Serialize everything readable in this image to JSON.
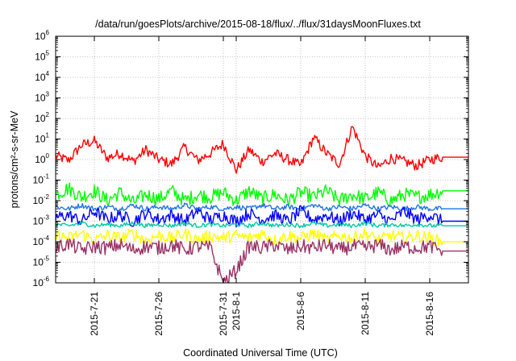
{
  "chart_data": {
    "type": "line",
    "title": "/data/run/goesPlots/archive/2015-08-18/flux/../flux/31daysMoonFluxes.txt",
    "xlabel": "Coordinated Universal Time (UTC)",
    "ylabel": "protons/cm²-s-sr-MeV",
    "yscale": "log",
    "grid": true,
    "ylim": [
      1e-06,
      1000000
    ],
    "xlim": [
      "2015-07-18",
      "2015-08-19"
    ],
    "y_ticks": [
      {
        "base": "10",
        "exp": "-6",
        "value": 1e-06
      },
      {
        "base": "10",
        "exp": "-5",
        "value": 1e-05
      },
      {
        "base": "10",
        "exp": "-4",
        "value": 0.0001
      },
      {
        "base": "10",
        "exp": "-3",
        "value": 0.001
      },
      {
        "base": "10",
        "exp": "-2",
        "value": 0.01
      },
      {
        "base": "10",
        "exp": "-1",
        "value": 0.1
      },
      {
        "base": "10",
        "exp": "0",
        "value": 1
      },
      {
        "base": "10",
        "exp": "1",
        "value": 10
      },
      {
        "base": "10",
        "exp": "2",
        "value": 100
      },
      {
        "base": "10",
        "exp": "3",
        "value": 1000
      },
      {
        "base": "10",
        "exp": "4",
        "value": 10000
      },
      {
        "base": "10",
        "exp": "5",
        "value": 100000
      },
      {
        "base": "10",
        "exp": "6",
        "value": 1000000
      }
    ],
    "x_ticks": [
      "2015-7-21",
      "2015-7-26",
      "2015-7-31",
      "2015-8-1",
      "2015-8-6",
      "2015-8-11",
      "2015-8-16"
    ],
    "x_tick_dates": [
      "2015-07-21",
      "2015-07-26",
      "2015-07-31",
      "2015-08-01",
      "2015-08-06",
      "2015-08-11",
      "2015-08-16"
    ],
    "x_start": "2015-07-18",
    "x_end": "2015-08-19",
    "data_end": "2015-08-17",
    "series": [
      {
        "color": "#ff0000",
        "x": [
          "2015-07-18",
          "2015-07-19",
          "2015-07-20",
          "2015-07-21",
          "2015-07-22",
          "2015-07-23",
          "2015-07-24",
          "2015-07-25",
          "2015-07-26",
          "2015-07-27",
          "2015-07-28",
          "2015-07-29",
          "2015-07-30",
          "2015-07-31",
          "2015-08-01",
          "2015-08-02",
          "2015-08-03",
          "2015-08-04",
          "2015-08-05",
          "2015-08-06",
          "2015-08-07",
          "2015-08-08",
          "2015-08-09",
          "2015-08-10",
          "2015-08-11",
          "2015-08-12",
          "2015-08-13",
          "2015-08-14",
          "2015-08-15",
          "2015-08-16",
          "2015-08-17"
        ],
        "values": [
          1.5,
          0.9,
          5,
          8,
          1.2,
          2,
          0.8,
          3,
          1,
          0.6,
          4,
          0.9,
          2,
          6,
          0.3,
          3,
          0.8,
          2,
          1,
          0.5,
          12,
          2,
          0.6,
          40,
          1.5,
          0.4,
          1.2,
          0.8,
          0.5,
          1,
          1.3
        ],
        "final": 1.3
      },
      {
        "color": "#00ff00",
        "x": [
          "2015-07-18",
          "2015-07-19",
          "2015-07-20",
          "2015-07-21",
          "2015-07-22",
          "2015-07-23",
          "2015-07-24",
          "2015-07-25",
          "2015-07-26",
          "2015-07-27",
          "2015-07-28",
          "2015-07-29",
          "2015-07-30",
          "2015-07-31",
          "2015-08-01",
          "2015-08-02",
          "2015-08-03",
          "2015-08-04",
          "2015-08-05",
          "2015-08-06",
          "2015-08-07",
          "2015-08-08",
          "2015-08-09",
          "2015-08-10",
          "2015-08-11",
          "2015-08-12",
          "2015-08-13",
          "2015-08-14",
          "2015-08-15",
          "2015-08-16",
          "2015-08-17"
        ],
        "values": [
          0.02,
          0.04,
          0.015,
          0.03,
          0.01,
          0.025,
          0.008,
          0.02,
          0.012,
          0.03,
          0.01,
          0.02,
          0.015,
          0.025,
          0.01,
          0.03,
          0.012,
          0.02,
          0.01,
          0.025,
          0.015,
          0.03,
          0.01,
          0.02,
          0.012,
          0.025,
          0.01,
          0.02,
          0.015,
          0.02,
          0.03
        ],
        "final": 0.03
      },
      {
        "color": "#1e73e6",
        "x": [
          "2015-07-18",
          "2015-07-19",
          "2015-07-20",
          "2015-07-21",
          "2015-07-22",
          "2015-07-23",
          "2015-07-24",
          "2015-07-25",
          "2015-07-26",
          "2015-07-27",
          "2015-07-28",
          "2015-07-29",
          "2015-07-30",
          "2015-07-31",
          "2015-08-01",
          "2015-08-02",
          "2015-08-03",
          "2015-08-04",
          "2015-08-05",
          "2015-08-06",
          "2015-08-07",
          "2015-08-08",
          "2015-08-09",
          "2015-08-10",
          "2015-08-11",
          "2015-08-12",
          "2015-08-13",
          "2015-08-14",
          "2015-08-15",
          "2015-08-16",
          "2015-08-17"
        ],
        "values": [
          0.005,
          0.004,
          0.006,
          0.004,
          0.005,
          0.004,
          0.006,
          0.004,
          0.005,
          0.004,
          0.006,
          0.004,
          0.005,
          0.004,
          0.005,
          0.004,
          0.006,
          0.004,
          0.005,
          0.004,
          0.006,
          0.004,
          0.005,
          0.004,
          0.006,
          0.004,
          0.005,
          0.004,
          0.005,
          0.004,
          0.004
        ],
        "final": 0.004
      },
      {
        "color": "#0000ff",
        "x": [
          "2015-07-18",
          "2015-07-19",
          "2015-07-20",
          "2015-07-21",
          "2015-07-22",
          "2015-07-23",
          "2015-07-24",
          "2015-07-25",
          "2015-07-26",
          "2015-07-27",
          "2015-07-28",
          "2015-07-29",
          "2015-07-30",
          "2015-07-31",
          "2015-08-01",
          "2015-08-02",
          "2015-08-03",
          "2015-08-04",
          "2015-08-05",
          "2015-08-06",
          "2015-08-07",
          "2015-08-08",
          "2015-08-09",
          "2015-08-10",
          "2015-08-11",
          "2015-08-12",
          "2015-08-13",
          "2015-08-14",
          "2015-08-15",
          "2015-08-16",
          "2015-08-17"
        ],
        "values": [
          0.0015,
          0.002,
          0.001,
          0.003,
          0.0012,
          0.002,
          0.001,
          0.0025,
          0.0012,
          0.002,
          0.001,
          0.003,
          0.0012,
          0.002,
          0.001,
          0.0025,
          0.0012,
          0.002,
          0.001,
          0.003,
          0.0012,
          0.002,
          0.001,
          0.0025,
          0.0012,
          0.002,
          0.001,
          0.003,
          0.0012,
          0.002,
          0.001
        ],
        "final": 0.001
      },
      {
        "color": "#00c8a0",
        "x": [
          "2015-07-18",
          "2015-07-19",
          "2015-07-20",
          "2015-07-21",
          "2015-07-22",
          "2015-07-23",
          "2015-07-24",
          "2015-07-25",
          "2015-07-26",
          "2015-07-27",
          "2015-07-28",
          "2015-07-29",
          "2015-07-30",
          "2015-07-31",
          "2015-08-01",
          "2015-08-02",
          "2015-08-03",
          "2015-08-04",
          "2015-08-05",
          "2015-08-06",
          "2015-08-07",
          "2015-08-08",
          "2015-08-09",
          "2015-08-10",
          "2015-08-11",
          "2015-08-12",
          "2015-08-13",
          "2015-08-14",
          "2015-08-15",
          "2015-08-16",
          "2015-08-17"
        ],
        "values": [
          0.0007,
          0.0006,
          0.0008,
          0.0006,
          0.0007,
          0.0006,
          0.0008,
          0.0006,
          0.0007,
          0.0006,
          0.0008,
          0.0006,
          0.0007,
          0.0006,
          0.0007,
          0.0006,
          0.0008,
          0.0006,
          0.0007,
          0.0006,
          0.0008,
          0.0006,
          0.0007,
          0.0006,
          0.0008,
          0.0006,
          0.0007,
          0.0006,
          0.0007,
          0.0006,
          0.0006
        ],
        "final": 0.0006
      },
      {
        "color": "#ffff00",
        "x": [
          "2015-07-18",
          "2015-07-19",
          "2015-07-20",
          "2015-07-21",
          "2015-07-22",
          "2015-07-23",
          "2015-07-24",
          "2015-07-25",
          "2015-07-26",
          "2015-07-27",
          "2015-07-28",
          "2015-07-29",
          "2015-07-30",
          "2015-07-31",
          "2015-08-01",
          "2015-08-02",
          "2015-08-03",
          "2015-08-04",
          "2015-08-05",
          "2015-08-06",
          "2015-08-07",
          "2015-08-08",
          "2015-08-09",
          "2015-08-10",
          "2015-08-11",
          "2015-08-12",
          "2015-08-13",
          "2015-08-14",
          "2015-08-15",
          "2015-08-16",
          "2015-08-17"
        ],
        "values": [
          0.0002,
          0.00015,
          0.00025,
          0.00012,
          0.0002,
          0.00015,
          0.00025,
          0.00012,
          0.0002,
          0.00015,
          0.00025,
          0.00012,
          0.0002,
          0.00015,
          0.0002,
          0.00015,
          0.00025,
          0.00012,
          0.0002,
          0.00015,
          0.00025,
          0.00012,
          0.0002,
          0.00015,
          0.00025,
          0.00012,
          0.0002,
          0.00015,
          0.0002,
          0.00015,
          0.0001
        ],
        "final": 0.0001
      },
      {
        "color": "#993366",
        "x": [
          "2015-07-18",
          "2015-07-19",
          "2015-07-20",
          "2015-07-21",
          "2015-07-22",
          "2015-07-23",
          "2015-07-24",
          "2015-07-25",
          "2015-07-26",
          "2015-07-27",
          "2015-07-28",
          "2015-07-29",
          "2015-07-30",
          "2015-07-31",
          "2015-08-01",
          "2015-08-02",
          "2015-08-03",
          "2015-08-04",
          "2015-08-05",
          "2015-08-06",
          "2015-08-07",
          "2015-08-08",
          "2015-08-09",
          "2015-08-10",
          "2015-08-11",
          "2015-08-12",
          "2015-08-13",
          "2015-08-14",
          "2015-08-15",
          "2015-08-16",
          "2015-08-17"
        ],
        "values": [
          5e-05,
          8e-05,
          4e-05,
          6e-05,
          5e-05,
          7e-05,
          4e-05,
          6e-05,
          5e-05,
          7e-05,
          4e-05,
          6e-05,
          5e-05,
          1e-06,
          4e-06,
          6e-05,
          5e-05,
          7e-05,
          4e-05,
          6e-05,
          5e-05,
          7e-05,
          4e-05,
          6e-05,
          5e-05,
          7e-05,
          4e-05,
          6e-05,
          5e-05,
          6e-05,
          3.5e-05
        ],
        "final": 3.5e-05
      }
    ]
  }
}
